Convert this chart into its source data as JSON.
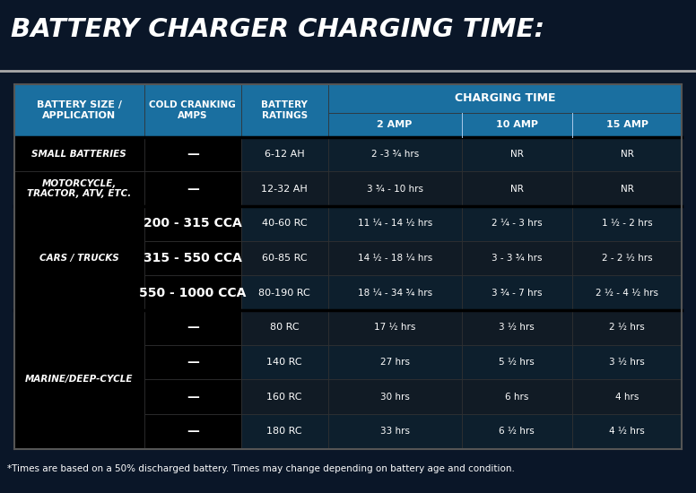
{
  "title": "BATTERY CHARGER CHARGING TIME:",
  "footnote": "*Times are based on a 50% discharged battery. Times may change depending on battery age and condition.",
  "bg_color": "#0a1628",
  "header_bg": "#1a6fa0",
  "header_text_color": "#ffffff",
  "col_headers_top": [
    "BATTERY SIZE /\nAPPLICATION",
    "COLD CRANKING\nAMPS",
    "BATTERY\nRATINGS"
  ],
  "charging_time_header": "CHARGING TIME",
  "col_headers_sub": [
    "2 AMP",
    "10 AMP",
    "15 AMP"
  ],
  "groups": [
    {
      "name": "SMALL BATTERIES",
      "start": 0,
      "end": 0
    },
    {
      "name": "MOTORCYCLE,\nTRACTOR, ATV, ETC.",
      "start": 1,
      "end": 1
    },
    {
      "name": "CARS / TRUCKS",
      "start": 2,
      "end": 4
    },
    {
      "name": "MARINE/DEEP-CYCLE",
      "start": 5,
      "end": 8
    }
  ],
  "rows": [
    {
      "cca": "—",
      "rating": "6-12 AH",
      "amp2": "2 -3 ¾ hrs",
      "amp10": "NR",
      "amp15": "NR"
    },
    {
      "cca": "—",
      "rating": "12-32 AH",
      "amp2": "3 ¾ - 10 hrs",
      "amp10": "NR",
      "amp15": "NR"
    },
    {
      "cca": "200 - 315 CCA",
      "rating": "40-60 RC",
      "amp2": "11 ¼ - 14 ½ hrs",
      "amp10": "2 ¼ - 3 hrs",
      "amp15": "1 ½ - 2 hrs"
    },
    {
      "cca": "315 - 550 CCA",
      "rating": "60-85 RC",
      "amp2": "14 ½ - 18 ¼ hrs",
      "amp10": "3 - 3 ¾ hrs",
      "amp15": "2 - 2 ½ hrs"
    },
    {
      "cca": "550 - 1000 CCA",
      "rating": "80-190 RC",
      "amp2": "18 ¼ - 34 ¾ hrs",
      "amp10": "3 ¾ - 7 hrs",
      "amp15": "2 ½ - 4 ½ hrs"
    },
    {
      "cca": "—",
      "rating": "80 RC",
      "amp2": "17 ½ hrs",
      "amp10": "3 ½ hrs",
      "amp15": "2 ½ hrs"
    },
    {
      "cca": "—",
      "rating": "140 RC",
      "amp2": "27 hrs",
      "amp10": "5 ½ hrs",
      "amp15": "3 ½ hrs"
    },
    {
      "cca": "—",
      "rating": "160 RC",
      "amp2": "30 hrs",
      "amp10": "6 hrs",
      "amp15": "4 hrs"
    },
    {
      "cca": "—",
      "rating": "180 RC",
      "amp2": "33 hrs",
      "amp10": "6 ½ hrs",
      "amp15": "4 ½ hrs"
    }
  ]
}
